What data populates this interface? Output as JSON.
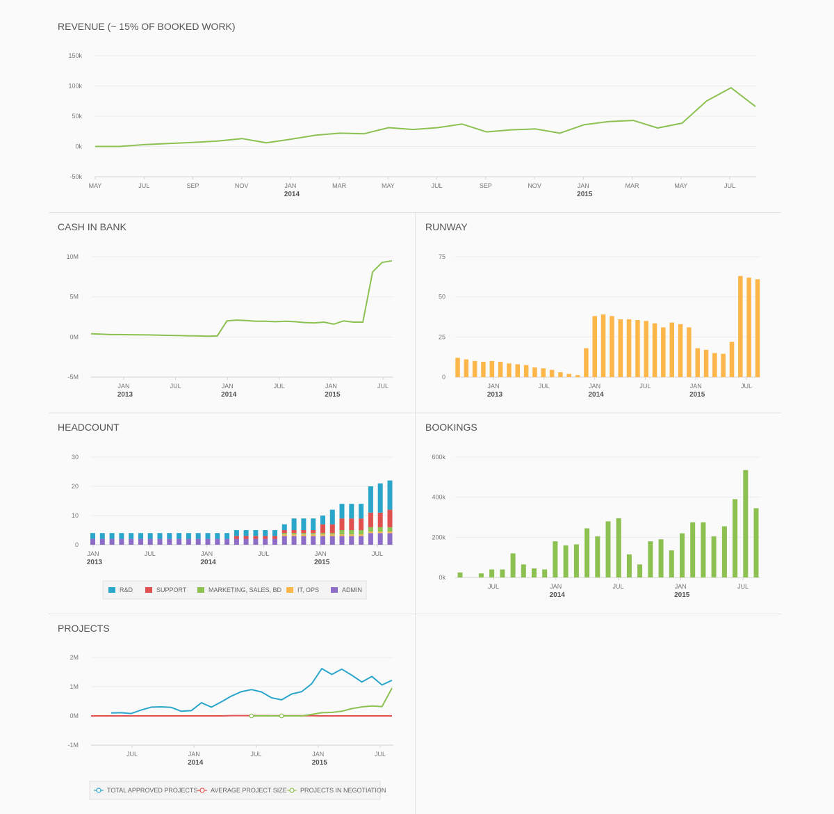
{
  "chart_data": [
    {
      "id": "revenue",
      "type": "line",
      "title": "REVENUE (~ 15% OF BOOKED WORK)",
      "yticks": [
        "150k",
        "100k",
        "50k",
        "0k",
        "-50k"
      ],
      "ylim": [
        -50000,
        150000
      ],
      "xticks": [
        {
          "label": "MAY",
          "year": ""
        },
        {
          "label": "JUL",
          "year": ""
        },
        {
          "label": "SEP",
          "year": ""
        },
        {
          "label": "NOV",
          "year": ""
        },
        {
          "label": "JAN",
          "year": "2014"
        },
        {
          "label": "MAR",
          "year": ""
        },
        {
          "label": "MAY",
          "year": ""
        },
        {
          "label": "JUL",
          "year": ""
        },
        {
          "label": "SEP",
          "year": ""
        },
        {
          "label": "NOV",
          "year": ""
        },
        {
          "label": "JAN",
          "year": "2015"
        },
        {
          "label": "MAR",
          "year": ""
        },
        {
          "label": "MAY",
          "year": ""
        },
        {
          "label": "JUL",
          "year": ""
        }
      ],
      "series": [
        {
          "name": "Revenue",
          "color": "#8cc152",
          "values": [
            0,
            0,
            3000,
            5000,
            6500,
            9000,
            13000,
            6000,
            12000,
            18500,
            22000,
            21000,
            31000,
            28000,
            31000,
            37000,
            24000,
            27500,
            29000,
            22000,
            36000,
            41000,
            43000,
            30500,
            38500,
            75000,
            97000,
            66000
          ]
        }
      ]
    },
    {
      "id": "cash",
      "type": "line",
      "title": "CASH IN BANK",
      "yticks": [
        "10M",
        "5M",
        "0M",
        "-5M"
      ],
      "ylim": [
        -5000000,
        10000000
      ],
      "xticks": [
        {
          "label": "JAN",
          "year": "2013"
        },
        {
          "label": "JUL",
          "year": ""
        },
        {
          "label": "JAN",
          "year": "2014"
        },
        {
          "label": "JUL",
          "year": ""
        },
        {
          "label": "JAN",
          "year": "2015"
        },
        {
          "label": "JUL",
          "year": ""
        }
      ],
      "series": [
        {
          "name": "Cash",
          "color": "#8cc152",
          "values": [
            400000,
            350000,
            300000,
            300000,
            280000,
            260000,
            250000,
            220000,
            200000,
            180000,
            150000,
            130000,
            100000,
            120000,
            2000000,
            2100000,
            2050000,
            1950000,
            1950000,
            1900000,
            1950000,
            1900000,
            1800000,
            1750000,
            1850000,
            1600000,
            2000000,
            1850000,
            1850000,
            8100000,
            9300000,
            9500000
          ]
        }
      ]
    },
    {
      "id": "runway",
      "type": "bar",
      "title": "RUNWAY",
      "yticks": [
        "75",
        "50",
        "25",
        "0"
      ],
      "ylim": [
        0,
        75
      ],
      "xticks": [
        {
          "label": "JAN",
          "year": "2013"
        },
        {
          "label": "JUL",
          "year": ""
        },
        {
          "label": "JAN",
          "year": "2014"
        },
        {
          "label": "JUL",
          "year": ""
        },
        {
          "label": "JAN",
          "year": "2015"
        },
        {
          "label": "JUL",
          "year": ""
        }
      ],
      "series": [
        {
          "name": "Runway",
          "color": "#fcb64a",
          "values": [
            12,
            11,
            10,
            9.5,
            10,
            9.5,
            8.5,
            8,
            7.5,
            6,
            5.5,
            4.5,
            3,
            2,
            1.2,
            18,
            38,
            39,
            38,
            36,
            36,
            35.5,
            35,
            33.5,
            31,
            34,
            33,
            31,
            18,
            17,
            15,
            14.5,
            22,
            63,
            62,
            61
          ]
        }
      ]
    },
    {
      "id": "headcount",
      "type": "bar",
      "stacked": true,
      "title": "HEADCOUNT",
      "yticks": [
        "30",
        "20",
        "10",
        "0"
      ],
      "ylim": [
        0,
        30
      ],
      "xticks": [
        {
          "label": "JAN",
          "year": "2013"
        },
        {
          "label": "JUL",
          "year": ""
        },
        {
          "label": "JAN",
          "year": "2014"
        },
        {
          "label": "JUL",
          "year": ""
        },
        {
          "label": "JAN",
          "year": "2015"
        },
        {
          "label": "JUL",
          "year": ""
        }
      ],
      "series": [
        {
          "name": "ADMIN",
          "color": "#8e6dc9",
          "values": [
            2,
            2,
            2,
            2,
            2,
            2,
            2,
            2,
            2,
            2,
            2,
            2,
            2,
            2,
            2,
            2,
            2,
            2,
            2,
            2,
            3,
            3,
            3,
            3,
            3,
            3,
            3,
            3,
            3,
            4,
            4,
            4
          ]
        },
        {
          "name": "IT, OPS",
          "color": "#fcb64a",
          "values": [
            0,
            0,
            0,
            0,
            0,
            0,
            0,
            0,
            0,
            0,
            0,
            0,
            0,
            0,
            0,
            0,
            0,
            0,
            0,
            0,
            0.5,
            0.5,
            0.5,
            0.5,
            0.5,
            0.5,
            0.5,
            0.5,
            0.5,
            0.5,
            0.5,
            0.5
          ]
        },
        {
          "name": "MARKETING, SALES, BD",
          "color": "#8cc152",
          "values": [
            0,
            0,
            0,
            0,
            0,
            0,
            0,
            0,
            0,
            0,
            0,
            0,
            0,
            0,
            0,
            0,
            0,
            0,
            0,
            0,
            0.5,
            0.5,
            0.5,
            0.5,
            0.5,
            0.5,
            1.5,
            1.5,
            1.5,
            1.5,
            1.5,
            1.5
          ]
        },
        {
          "name": "SUPPORT",
          "color": "#e0504e",
          "values": [
            0,
            0,
            0,
            0,
            0,
            0,
            0,
            0,
            0,
            0,
            0,
            0,
            0,
            0,
            0,
            1,
            1,
            1,
            1,
            1,
            1,
            1,
            1,
            1,
            3,
            3,
            4,
            4,
            4,
            5,
            5,
            6
          ]
        },
        {
          "name": "R&D",
          "color": "#2ba6cb",
          "values": [
            2,
            2,
            2,
            2,
            2,
            2,
            2,
            2,
            2,
            2,
            2,
            2,
            2,
            2,
            2,
            2,
            2,
            2,
            2,
            2,
            2,
            4,
            4,
            4,
            3,
            5,
            5,
            5,
            5,
            9,
            10,
            10
          ]
        }
      ],
      "legend": [
        "R&D",
        "SUPPORT",
        "MARKETING, SALES, BD",
        "IT, OPS",
        "ADMIN"
      ]
    },
    {
      "id": "bookings",
      "type": "bar",
      "title": "BOOKINGS",
      "yticks": [
        "600k",
        "400k",
        "200k",
        "0k"
      ],
      "ylim": [
        0,
        600000
      ],
      "xticks": [
        {
          "label": "JUL",
          "year": ""
        },
        {
          "label": "JAN",
          "year": "2014"
        },
        {
          "label": "JUL",
          "year": ""
        },
        {
          "label": "JAN",
          "year": "2015"
        },
        {
          "label": "JUL",
          "year": ""
        }
      ],
      "series": [
        {
          "name": "Bookings",
          "color": "#8cc152",
          "values": [
            25000,
            0,
            20000,
            40000,
            40000,
            120000,
            65000,
            45000,
            40000,
            180000,
            160000,
            165000,
            245000,
            205000,
            280000,
            295000,
            115000,
            65000,
            180000,
            190000,
            135000,
            220000,
            275000,
            275000,
            205000,
            255000,
            390000,
            535000,
            345000
          ]
        }
      ]
    },
    {
      "id": "projects",
      "type": "line",
      "title": "PROJECTS",
      "yticks": [
        "2M",
        "1M",
        "0M",
        "-1M"
      ],
      "ylim": [
        -1000000,
        2000000
      ],
      "xticks": [
        {
          "label": "JUL",
          "year": ""
        },
        {
          "label": "JAN",
          "year": "2014"
        },
        {
          "label": "JUL",
          "year": ""
        },
        {
          "label": "JAN",
          "year": "2015"
        },
        {
          "label": "JUL",
          "year": ""
        }
      ],
      "series": [
        {
          "name": "TOTAL APPROVED PROJECTS",
          "color": "#2ba6cb",
          "values": [
            null,
            null,
            100000,
            110000,
            80000,
            200000,
            300000,
            310000,
            290000,
            160000,
            180000,
            450000,
            300000,
            480000,
            680000,
            830000,
            900000,
            820000,
            620000,
            550000,
            750000,
            830000,
            1100000,
            1620000,
            1420000,
            1600000,
            1390000,
            1160000,
            1350000,
            1060000,
            1220000
          ]
        },
        {
          "name": "AVERAGE PROJECT SIZE",
          "color": "#e0504e",
          "values": [
            0,
            0,
            0,
            0,
            0,
            0,
            0,
            0,
            0,
            0,
            0,
            0,
            0,
            0,
            10000,
            10000,
            10000,
            10000,
            5000,
            5000,
            5000,
            5000,
            5000,
            0,
            0,
            0,
            0,
            0,
            0,
            0,
            0
          ]
        },
        {
          "name": "PROJECTS IN NEGOTIATION",
          "color": "#8cc152",
          "values": [
            null,
            null,
            null,
            null,
            null,
            null,
            null,
            null,
            null,
            null,
            null,
            null,
            null,
            null,
            null,
            null,
            0,
            0,
            0,
            0,
            0,
            0,
            50000,
            110000,
            120000,
            160000,
            250000,
            310000,
            340000,
            320000,
            950000
          ]
        }
      ],
      "legend": [
        "TOTAL APPROVED PROJECTS",
        "AVERAGE PROJECT SIZE",
        "PROJECTS IN NEGOTIATION"
      ]
    }
  ]
}
